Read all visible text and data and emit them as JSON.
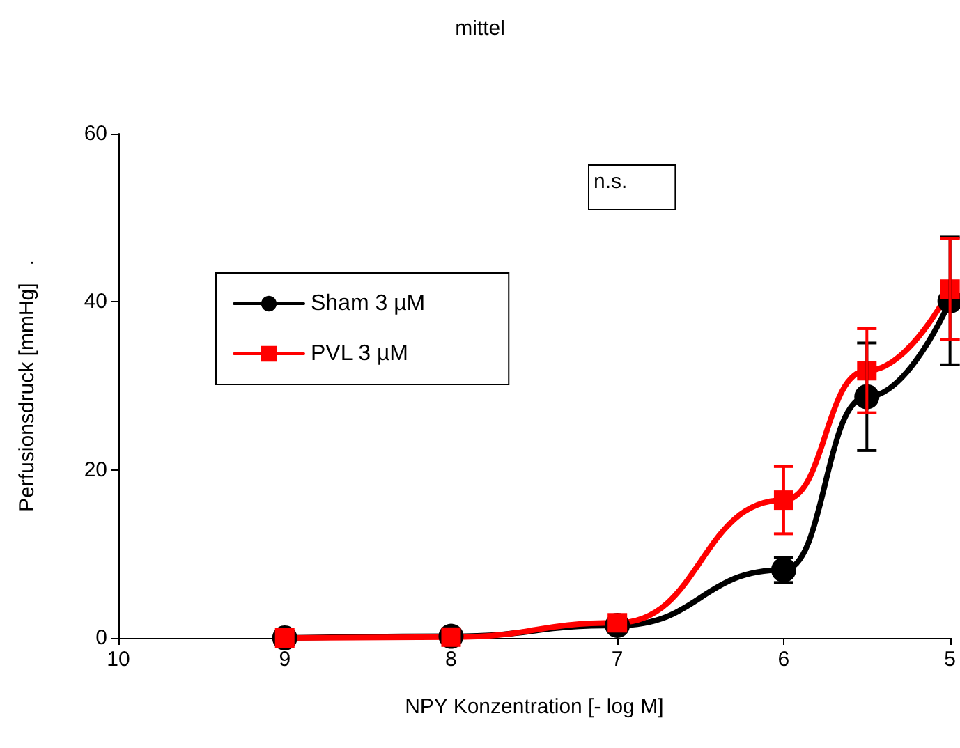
{
  "chart_data": {
    "type": "line",
    "title": "mittel",
    "xlabel": "NPY Konzentration [- log M]",
    "ylabel": "Perfusionsdruck [mmHg]   .",
    "annotations": [
      "n.s."
    ],
    "x": [
      9,
      8,
      7,
      6,
      5.5,
      5
    ],
    "xlim": [
      10,
      5
    ],
    "xticks": [
      10,
      9,
      8,
      7,
      6,
      5
    ],
    "ylim": [
      0,
      60
    ],
    "yticks": [
      0,
      20,
      40,
      60
    ],
    "grid": false,
    "legend": "left",
    "line_style": "solid",
    "series": [
      {
        "name": "Sham 3 µM",
        "color": "#000000",
        "marker": "circle",
        "values": [
          0,
          0.2,
          1.5,
          8.1,
          28.7,
          40.1
        ],
        "errors": [
          null,
          null,
          null,
          1.5,
          6.4,
          7.6
        ]
      },
      {
        "name": "PVL 3 µM",
        "color": "#ff0000",
        "marker": "square",
        "values": [
          0,
          0.1,
          1.8,
          16.4,
          31.8,
          41.5
        ],
        "errors": [
          null,
          null,
          null,
          4,
          5,
          6
        ]
      }
    ]
  }
}
